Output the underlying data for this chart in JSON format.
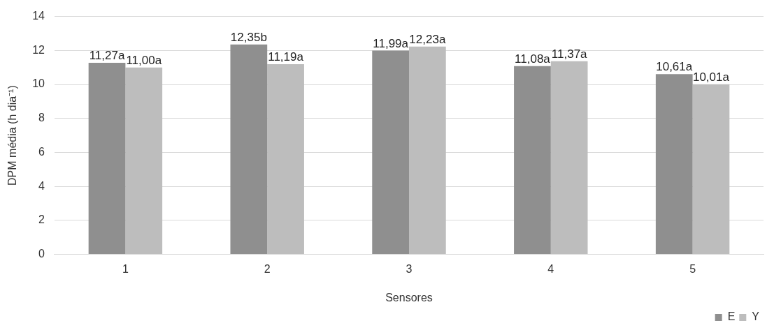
{
  "chart_data": {
    "type": "bar",
    "xlabel": "Sensores",
    "ylabel": "DPM média (h dia⁻¹)",
    "categories": [
      "1",
      "2",
      "3",
      "4",
      "5"
    ],
    "series": [
      {
        "name": "E",
        "color": "#8f8f8f",
        "values": [
          11.27,
          12.35,
          11.99,
          11.08,
          10.61
        ],
        "value_labels": [
          "11,27a",
          "12,35b",
          "11,99a",
          "11,08a",
          "10,61a"
        ]
      },
      {
        "name": "Y",
        "color": "#bdbdbd",
        "values": [
          11.0,
          11.19,
          12.23,
          11.37,
          10.01
        ],
        "value_labels": [
          "11,00a",
          "11,19a",
          "12,23a",
          "11,37a",
          "10,01a"
        ]
      }
    ],
    "ylim": [
      0,
      14
    ],
    "yticks": [
      0,
      2,
      4,
      6,
      8,
      10,
      12,
      14
    ],
    "grid": "y",
    "legend": "bottom right"
  }
}
